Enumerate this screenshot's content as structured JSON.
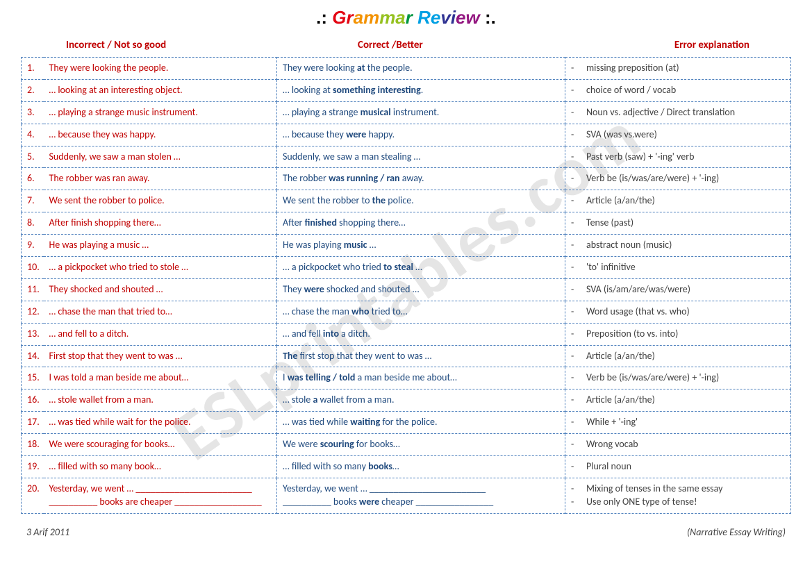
{
  "title_prefix": ".:",
  "title_suffix": ":.",
  "title_words": [
    "Gr",
    "am",
    "ma",
    "r ",
    "Re",
    "vi",
    "ew"
  ],
  "headers": {
    "col1": "Incorrect / Not so good",
    "col2": "Correct /Better",
    "col3": "Error explanation"
  },
  "rows": [
    {
      "n": "1.",
      "inc": "They were looking the people.",
      "cor": "They were looking <b>at</b> the people.",
      "exp": "missing preposition (at)"
    },
    {
      "n": "2.",
      "inc": "… looking at an interesting object.",
      "cor": "… looking at <b>something interesting</b>.",
      "exp": "choice of word / vocab"
    },
    {
      "n": "3.",
      "inc": "… playing a strange music instrument.",
      "cor": "… playing a strange <b>musical</b> instrument.",
      "exp": "Noun vs. adjective / Direct translation"
    },
    {
      "n": "4.",
      "inc": "… because they was happy.",
      "cor": "… because they <b>were</b> happy.",
      "exp": "SVA (was vs.were)"
    },
    {
      "n": "5.",
      "inc": "Suddenly, we saw a man stolen …",
      "cor": "Suddenly, we saw a man stealing …",
      "exp": "Past verb (saw) + '-ing' verb"
    },
    {
      "n": "6.",
      "inc": "The robber was ran away.",
      "cor": "The robber <b>was running / ran</b> away.",
      "exp": "Verb be (is/was/are/were) + '-ing)"
    },
    {
      "n": "7.",
      "inc": "We sent the robber to police.",
      "cor": "We sent the robber to <b>the</b> police.",
      "exp": "Article (a/an/the)"
    },
    {
      "n": "8.",
      "inc": "After finish shopping there…",
      "cor": "After <b>finished</b> shopping there…",
      "exp": "Tense (past)"
    },
    {
      "n": "9.",
      "inc": "He was playing a music …",
      "cor": "He was playing <b>music</b> …",
      "exp": "abstract noun (music)"
    },
    {
      "n": "10.",
      "inc": "… a pickpocket who tried to stole …",
      "cor": "… a pickpocket who tried <b>to steal</b> …",
      "exp": "'to' infinitive"
    },
    {
      "n": "11.",
      "inc": "They shocked and shouted …",
      "cor": "They <b>were</b> shocked and shouted …",
      "exp": "SVA (is/am/are/was/were)"
    },
    {
      "n": "12.",
      "inc": "… chase the man that tried to…",
      "cor": "… chase the man <b>who</b> tried to…",
      "exp": "Word usage (that vs. who)"
    },
    {
      "n": "13.",
      "inc": "… and fell to a ditch.",
      "cor": "… and fell <b>into</b> a ditch.",
      "exp": "Preposition (to vs. into)"
    },
    {
      "n": "14.",
      "inc": "First stop that they went to was …",
      "cor": "<b>The</b> first stop that they went to was …",
      "exp": "Article (a/an/the)"
    },
    {
      "n": "15.",
      "inc": "I was told a man beside me about…",
      "cor": "I <b>was telling / told</b> a man beside me about…",
      "exp": "Verb be (is/was/are/were) + '-ing)"
    },
    {
      "n": "16.",
      "inc": "… stole wallet from a man.",
      "cor": "… stole <b>a</b> wallet from a man.",
      "exp": "Article (a/an/the)"
    },
    {
      "n": "17.",
      "inc": "… was tied while wait for the police.",
      "cor": "… was tied while <b>waiting</b> for the police.",
      "exp": "While + '-ing'"
    },
    {
      "n": "18.",
      "inc": "We were scouraging for books…",
      "cor": "We were <b>scouring</b> for books…",
      "exp": "Wrong vocab"
    },
    {
      "n": "19.",
      "inc": "… filled with so many book…",
      "cor": "… filled with so many <b>books</b>…",
      "exp": "Plural noun"
    },
    {
      "n": "20.",
      "inc": "Yesterday, we went … ________________________<br>__________ books are cheaper __________________",
      "cor": "Yesterday, we went … ________________________<br>__________ books <b>were</b> cheaper ________________",
      "exp": "Mixing of tenses in the same essay<br><span class=\"dash\">-</span>Use only ONE type of tense!"
    }
  ],
  "footer_left": "3 Arif 2011",
  "footer_right": "(Narrative Essay Writing)",
  "watermark": "ESLprintables.com"
}
